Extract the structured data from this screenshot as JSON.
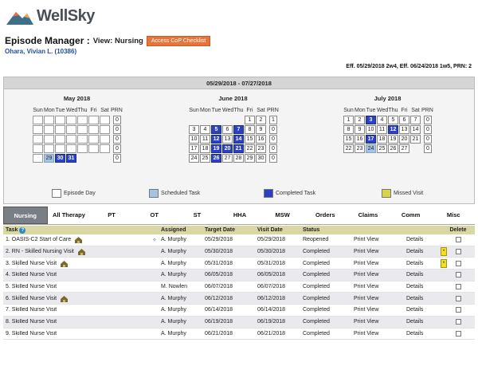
{
  "brand": {
    "name": "WellSky"
  },
  "header": {
    "title": "Episode Manager :",
    "view": "View: Nursing",
    "cop_button": "Access CoP Checklist",
    "patient": "Ohara, Vivian L. (10386)",
    "eff": "Eff. 05/29/2018 2w4, Eff. 06/24/2018 1w5, PRN: 2"
  },
  "calendar": {
    "range": "05/29/2018 - 07/27/2018",
    "dow": [
      "Sun",
      "Mon",
      "Tue",
      "Wed",
      "Thu",
      "Fri",
      "Sat",
      "PRN"
    ],
    "months": [
      {
        "name": "May 2018",
        "weeks": [
          [
            "",
            "",
            "",
            "",
            "",
            "",
            "",
            "0"
          ],
          [
            "",
            "",
            "",
            "",
            "",
            "",
            "",
            "0"
          ],
          [
            "",
            "",
            "",
            "",
            "",
            "",
            "",
            "0"
          ],
          [
            "",
            "",
            "",
            "",
            "",
            "",
            "",
            "0"
          ],
          [
            "",
            "29",
            "30",
            "31",
            "",
            "",
            "",
            "0"
          ]
        ],
        "states": [
          [
            "e",
            "e",
            "e",
            "e",
            "e",
            "e",
            "e",
            "p"
          ],
          [
            "e",
            "e",
            "e",
            "e",
            "e",
            "e",
            "e",
            "p"
          ],
          [
            "e",
            "e",
            "e",
            "e",
            "e",
            "e",
            "e",
            "p"
          ],
          [
            "e",
            "e",
            "e",
            "e",
            "e",
            "e",
            "e",
            "p"
          ],
          [
            "e",
            "s",
            "d",
            "d",
            "b",
            "b",
            "b",
            "p"
          ]
        ]
      },
      {
        "name": "June 2018",
        "weeks": [
          [
            "",
            "",
            "",
            "",
            "",
            "1",
            "2",
            "1"
          ],
          [
            "3",
            "4",
            "5",
            "6",
            "7",
            "8",
            "9",
            "0"
          ],
          [
            "10",
            "11",
            "12",
            "13",
            "14",
            "15",
            "16",
            "0"
          ],
          [
            "17",
            "18",
            "19",
            "20",
            "21",
            "22",
            "23",
            "0"
          ],
          [
            "24",
            "25",
            "26",
            "27",
            "28",
            "29",
            "30",
            "0"
          ]
        ],
        "states": [
          [
            "b",
            "b",
            "b",
            "b",
            "b",
            "n",
            "n",
            "p"
          ],
          [
            "n",
            "n",
            "d",
            "n",
            "d",
            "n",
            "n",
            "p"
          ],
          [
            "n",
            "n",
            "d",
            "n",
            "d",
            "n",
            "n",
            "p"
          ],
          [
            "n",
            "n",
            "d",
            "d",
            "d",
            "n",
            "n",
            "p"
          ],
          [
            "n",
            "n",
            "d",
            "n",
            "n",
            "n",
            "n",
            "p"
          ]
        ]
      },
      {
        "name": "July 2018",
        "weeks": [
          [
            "1",
            "2",
            "3",
            "4",
            "5",
            "6",
            "7",
            "0"
          ],
          [
            "8",
            "9",
            "10",
            "11",
            "12",
            "13",
            "14",
            "0"
          ],
          [
            "15",
            "16",
            "17",
            "18",
            "19",
            "20",
            "21",
            "0"
          ],
          [
            "22",
            "23",
            "24",
            "25",
            "26",
            "27",
            "",
            "0"
          ]
        ],
        "states": [
          [
            "n",
            "n",
            "d",
            "n",
            "n",
            "n",
            "n",
            "p"
          ],
          [
            "n",
            "n",
            "n",
            "n",
            "d",
            "n",
            "n",
            "p"
          ],
          [
            "n",
            "n",
            "d",
            "n",
            "n",
            "n",
            "n",
            "p"
          ],
          [
            "n",
            "n",
            "s",
            "n",
            "n",
            "n",
            "b",
            "p"
          ]
        ]
      }
    ],
    "legend": [
      "Episode Day",
      "Scheduled Task",
      "Completed Task",
      "Missed Visit"
    ],
    "colors": {
      "scheduled": "#a6c4e2",
      "completed": "#2b40c4",
      "missed": "#d8d44a"
    }
  },
  "tabs": [
    "Nursing",
    "All Therapy",
    "PT",
    "OT",
    "ST",
    "HHA",
    "MSW",
    "Orders",
    "Claims",
    "Comm",
    "Misc"
  ],
  "table": {
    "headers": {
      "task": "Task",
      "assigned": "Assigned",
      "target": "Target Date",
      "visit": "Visit Date",
      "status": "Status",
      "delete": "Delete"
    },
    "rows": [
      {
        "n": "1.",
        "task": "OASIS-C2 Start of Care",
        "icon": true,
        "pin": true,
        "assigned": "A. Murphy",
        "target": "05/29/2018",
        "visit": "05/29/2018",
        "status": "Reopened",
        "print": "Print View",
        "details": "Details",
        "flag": false
      },
      {
        "n": "2.",
        "task": "RN - Skilled Nursing Visit",
        "icon": true,
        "pin": false,
        "assigned": "A. Murphy",
        "target": "05/30/2018",
        "visit": "05/30/2018",
        "status": "Completed",
        "print": "Print View",
        "details": "Details",
        "flag": true
      },
      {
        "n": "3.",
        "task": "Skilled Nurse Visit",
        "icon": true,
        "pin": false,
        "assigned": "A. Murphy",
        "target": "05/31/2018",
        "visit": "05/31/2018",
        "status": "Completed",
        "print": "Print View",
        "details": "Details",
        "flag": true
      },
      {
        "n": "4.",
        "task": "Skilled Nurse Visit",
        "icon": false,
        "pin": false,
        "assigned": "A. Murphy",
        "target": "06/05/2018",
        "visit": "06/05/2018",
        "status": "Completed",
        "print": "Print View",
        "details": "Details",
        "flag": false
      },
      {
        "n": "5.",
        "task": "Skilled Nurse Visit",
        "icon": false,
        "pin": false,
        "assigned": "M. Nowlen",
        "target": "06/07/2018",
        "visit": "06/07/2018",
        "status": "Completed",
        "print": "Print View",
        "details": "Details",
        "flag": false
      },
      {
        "n": "6.",
        "task": "Skilled Nurse Visit",
        "icon": true,
        "pin": false,
        "assigned": "A. Murphy",
        "target": "06/12/2018",
        "visit": "06/12/2018",
        "status": "Completed",
        "print": "Print View",
        "details": "Details",
        "flag": false
      },
      {
        "n": "7.",
        "task": "Skilled Nurse Visit",
        "icon": false,
        "pin": false,
        "assigned": "A. Murphy",
        "target": "06/14/2018",
        "visit": "06/14/2018",
        "status": "Completed",
        "print": "Print View",
        "details": "Details",
        "flag": false
      },
      {
        "n": "8.",
        "task": "Skilled Nurse Visit",
        "icon": false,
        "pin": false,
        "assigned": "A. Murphy",
        "target": "06/19/2018",
        "visit": "06/19/2018",
        "status": "Completed",
        "print": "Print View",
        "details": "Details",
        "flag": false
      },
      {
        "n": "9.",
        "task": "Skilled Nurse Visit",
        "icon": false,
        "pin": false,
        "assigned": "A. Murphy",
        "target": "06/21/2018",
        "visit": "06/21/2018",
        "status": "Completed",
        "print": "Print View",
        "details": "Details",
        "flag": false
      }
    ]
  }
}
